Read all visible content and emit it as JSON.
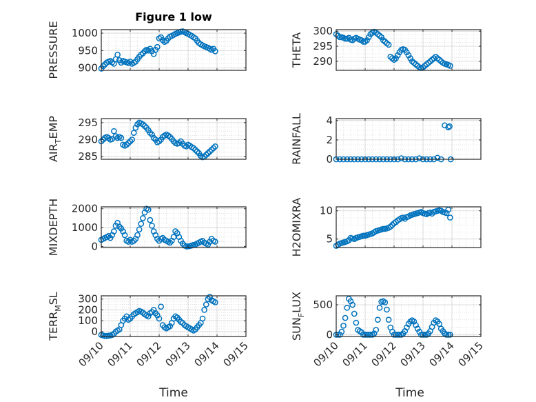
{
  "figure": {
    "title": "Figure 1 low",
    "marker_color": "#0072BD"
  },
  "chart_data": [
    {
      "type": "scatter",
      "id": "pressure",
      "ylabel": "PRESSURE",
      "yticks": [
        900,
        950,
        1000
      ],
      "ylim": [
        893,
        1010
      ],
      "x": [
        "09/10 00:00",
        "09/10 01:30",
        "09/10 03:00",
        "09/10 04:30",
        "09/10 06:00",
        "09/10 07:30",
        "09/10 09:00",
        "09/10 10:30",
        "09/10 12:00",
        "09/10 13:30",
        "09/10 15:00",
        "09/10 16:30",
        "09/10 18:00",
        "09/10 19:30",
        "09/10 21:00",
        "09/10 22:30",
        "09/11 00:00",
        "09/11 01:30",
        "09/11 03:00",
        "09/11 04:30",
        "09/11 06:00",
        "09/11 07:30",
        "09/11 09:00",
        "09/11 10:30",
        "09/11 12:00",
        "09/11 13:30",
        "09/11 15:00",
        "09/11 16:30",
        "09/11 18:00",
        "09/11 19:30",
        "09/11 21:00",
        "09/11 22:30",
        "09/12 00:00",
        "09/12 01:30",
        "09/12 03:00",
        "09/12 04:30",
        "09/12 06:00",
        "09/12 07:30",
        "09/12 09:00",
        "09/12 10:30",
        "09/12 12:00",
        "09/12 13:30",
        "09/12 15:00",
        "09/12 16:30",
        "09/12 18:00",
        "09/12 19:30",
        "09/12 21:00",
        "09/12 22:30",
        "09/13 00:00",
        "09/13 01:30",
        "09/13 03:00",
        "09/13 04:30",
        "09/13 06:00",
        "09/13 07:30",
        "09/13 09:00",
        "09/13 10:30",
        "09/13 12:00",
        "09/13 13:30",
        "09/13 15:00",
        "09/13 16:30",
        "09/13 18:00",
        "09/13 19:30",
        "09/13 21:00",
        "09/13 22:30"
      ],
      "y": [
        898,
        905,
        910,
        915,
        918,
        920,
        916,
        912,
        925,
        938,
        922,
        915,
        920,
        918,
        916,
        914,
        918,
        912,
        915,
        918,
        925,
        932,
        938,
        942,
        948,
        952,
        950,
        955,
        948,
        940,
        952,
        960,
        985,
        988,
        980,
        975,
        978,
        985,
        990,
        992,
        995,
        998,
        1000,
        1002,
        1004,
        1005,
        1003,
        1000,
        998,
        995,
        992,
        988,
        985,
        978,
        972,
        968,
        965,
        962,
        960,
        958,
        955,
        952,
        955,
        948
      ]
    },
    {
      "type": "scatter",
      "id": "theta",
      "ylabel": "THETA",
      "yticks": [
        290,
        295,
        300
      ],
      "ylim": [
        287,
        300.5
      ],
      "x": [
        "09/10 00:00",
        "09/10 01:30",
        "09/10 03:00",
        "09/10 04:30",
        "09/10 06:00",
        "09/10 07:30",
        "09/10 09:00",
        "09/10 10:30",
        "09/10 12:00",
        "09/10 13:30",
        "09/10 15:00",
        "09/10 16:30",
        "09/10 18:00",
        "09/10 19:30",
        "09/10 21:00",
        "09/10 22:30",
        "09/11 00:00",
        "09/11 01:30",
        "09/11 03:00",
        "09/11 04:30",
        "09/11 06:00",
        "09/11 07:30",
        "09/11 09:00",
        "09/11 10:30",
        "09/11 12:00",
        "09/11 13:30",
        "09/11 15:00",
        "09/11 16:30",
        "09/11 18:00",
        "09/11 19:30",
        "09/11 21:00",
        "09/11 22:30",
        "09/12 00:00",
        "09/12 01:30",
        "09/12 03:00",
        "09/12 04:30",
        "09/12 06:00",
        "09/12 07:30",
        "09/12 09:00",
        "09/12 10:30",
        "09/12 12:00",
        "09/12 13:30",
        "09/12 15:00",
        "09/12 16:30",
        "09/12 18:00",
        "09/12 19:30",
        "09/12 21:00",
        "09/12 22:30",
        "09/13 00:00",
        "09/13 01:30",
        "09/13 03:00",
        "09/13 04:30",
        "09/13 06:00",
        "09/13 07:30",
        "09/13 09:00",
        "09/13 10:30",
        "09/13 12:00",
        "09/13 13:30",
        "09/13 15:00",
        "09/13 16:30",
        "09/13 18:00",
        "09/13 19:30",
        "09/13 21:00",
        "09/13 22:30"
      ],
      "y": [
        299,
        298.5,
        298,
        298,
        297.8,
        297.5,
        297.5,
        297.8,
        297.2,
        297,
        297.5,
        297.8,
        297.5,
        297.2,
        297,
        296.5,
        296.5,
        297,
        298,
        299,
        299.5,
        299.8,
        299.5,
        299,
        298.5,
        298,
        297,
        296.5,
        296,
        295.5,
        291.5,
        291,
        290.5,
        291,
        292,
        293,
        293.8,
        294,
        293.8,
        293,
        292,
        291,
        290,
        289.5,
        289,
        288.5,
        288,
        287.8,
        288,
        288.5,
        289,
        289.5,
        290,
        290.5,
        291,
        291.5,
        291,
        290.5,
        290,
        289.5,
        289.2,
        289,
        288.8,
        288.5
      ]
    },
    {
      "type": "scatter",
      "id": "air_temp",
      "ylabel": "AIR",
      "ylabel_sub": "T",
      "ylabel_tail": "EMP",
      "yticks": [
        285,
        290,
        295
      ],
      "ylim": [
        284.2,
        296.2
      ],
      "x": [
        "09/10 00:00",
        "09/10 01:30",
        "09/10 03:00",
        "09/10 04:30",
        "09/10 06:00",
        "09/10 07:30",
        "09/10 09:00",
        "09/10 10:30",
        "09/10 12:00",
        "09/10 13:30",
        "09/10 15:00",
        "09/10 16:30",
        "09/10 18:00",
        "09/10 19:30",
        "09/10 21:00",
        "09/10 22:30",
        "09/11 00:00",
        "09/11 01:30",
        "09/11 03:00",
        "09/11 04:30",
        "09/11 06:00",
        "09/11 07:30",
        "09/11 09:00",
        "09/11 10:30",
        "09/11 12:00",
        "09/11 13:30",
        "09/11 15:00",
        "09/11 16:30",
        "09/11 18:00",
        "09/11 19:30",
        "09/11 21:00",
        "09/11 22:30",
        "09/12 00:00",
        "09/12 01:30",
        "09/12 03:00",
        "09/12 04:30",
        "09/12 06:00",
        "09/12 07:30",
        "09/12 09:00",
        "09/12 10:30",
        "09/12 12:00",
        "09/12 13:30",
        "09/12 15:00",
        "09/12 16:30",
        "09/12 18:00",
        "09/12 19:30",
        "09/12 21:00",
        "09/12 22:30",
        "09/13 00:00",
        "09/13 01:30",
        "09/13 03:00",
        "09/13 04:30",
        "09/13 06:00",
        "09/13 07:30",
        "09/13 09:00",
        "09/13 10:30",
        "09/13 12:00",
        "09/13 13:30",
        "09/13 15:00",
        "09/13 16:30",
        "09/13 18:00",
        "09/13 19:30",
        "09/13 21:00",
        "09/13 22:30"
      ],
      "y": [
        289.5,
        290,
        290.5,
        290.8,
        290.5,
        290,
        290.2,
        292.5,
        291,
        290.5,
        290.8,
        290.5,
        288.5,
        288.2,
        288.5,
        289,
        289.5,
        290,
        292,
        293.5,
        294.5,
        295,
        294.8,
        294.5,
        294,
        293.5,
        292.8,
        292,
        291.5,
        290.5,
        290,
        289.2,
        289.5,
        290,
        290.8,
        291.2,
        291.5,
        291.2,
        290.8,
        290.2,
        289.5,
        289,
        288.8,
        289,
        289.5,
        288.8,
        288.2,
        288,
        288.5,
        288.2,
        287.8,
        287.5,
        287,
        286.5,
        286,
        285.2,
        284.8,
        285,
        285.5,
        286,
        286.5,
        287,
        287.5,
        288
      ]
    },
    {
      "type": "scatter",
      "id": "rainfall",
      "ylabel": "RAINFALL",
      "yticks": [
        0,
        2,
        4
      ],
      "ylim": [
        0,
        4.2
      ],
      "x": [
        "09/10 00:00",
        "09/10 03:00",
        "09/10 06:00",
        "09/10 09:00",
        "09/10 12:00",
        "09/10 15:00",
        "09/10 18:00",
        "09/10 21:00",
        "09/11 00:00",
        "09/11 03:00",
        "09/11 06:00",
        "09/11 09:00",
        "09/11 12:00",
        "09/11 15:00",
        "09/11 18:00",
        "09/11 21:00",
        "09/12 00:00",
        "09/12 03:00",
        "09/12 06:00",
        "09/12 09:00",
        "09/12 12:00",
        "09/12 15:00",
        "09/12 18:00",
        "09/12 21:00",
        "09/13 00:00",
        "09/13 03:00",
        "09/13 06:00",
        "09/13 09:00",
        "09/13 12:00",
        "09/13 15:00",
        "09/13 18:00",
        "09/13 21:00",
        "09/13 22:00",
        "09/13 23:00"
      ],
      "y": [
        0,
        0,
        0,
        0,
        0,
        0,
        0,
        0,
        0,
        0,
        0,
        0,
        0,
        0,
        0,
        0,
        0,
        0,
        0.1,
        0,
        0,
        0,
        0,
        0.1,
        0,
        0,
        0,
        0,
        0.15,
        0,
        3.5,
        3.3,
        3.4,
        0
      ]
    },
    {
      "type": "scatter",
      "id": "mixdepth",
      "ylabel": "MIXDEPTH",
      "yticks": [
        0,
        1000,
        2000
      ],
      "ylim": [
        -60,
        2100
      ],
      "x": [
        "09/10 00:00",
        "09/10 01:30",
        "09/10 03:00",
        "09/10 04:30",
        "09/10 06:00",
        "09/10 07:30",
        "09/10 09:00",
        "09/10 10:30",
        "09/10 12:00",
        "09/10 13:30",
        "09/10 15:00",
        "09/10 16:30",
        "09/10 18:00",
        "09/10 19:30",
        "09/10 21:00",
        "09/10 22:30",
        "09/11 00:00",
        "09/11 01:30",
        "09/11 03:00",
        "09/11 04:30",
        "09/11 06:00",
        "09/11 07:30",
        "09/11 09:00",
        "09/11 10:30",
        "09/11 12:00",
        "09/11 13:30",
        "09/11 15:00",
        "09/11 16:30",
        "09/11 18:00",
        "09/11 19:30",
        "09/11 21:00",
        "09/11 22:30",
        "09/12 00:00",
        "09/12 01:30",
        "09/12 03:00",
        "09/12 04:30",
        "09/12 06:00",
        "09/12 07:30",
        "09/12 09:00",
        "09/12 10:30",
        "09/12 12:00",
        "09/12 13:30",
        "09/12 15:00",
        "09/12 16:30",
        "09/12 18:00",
        "09/12 19:30",
        "09/12 21:00",
        "09/12 22:30",
        "09/13 00:00",
        "09/13 01:30",
        "09/13 03:00",
        "09/13 04:30",
        "09/13 06:00",
        "09/13 07:30",
        "09/13 09:00",
        "09/13 10:30",
        "09/13 12:00",
        "09/13 13:30",
        "09/13 15:00",
        "09/13 16:30",
        "09/13 18:00",
        "09/13 19:30",
        "09/13 21:00",
        "09/13 22:30"
      ],
      "y": [
        350,
        400,
        450,
        500,
        550,
        450,
        600,
        800,
        1100,
        1250,
        1050,
        950,
        800,
        600,
        300,
        250,
        350,
        250,
        300,
        400,
        600,
        900,
        1200,
        1500,
        1800,
        2000,
        1950,
        1400,
        1100,
        800,
        600,
        400,
        300,
        400,
        450,
        350,
        300,
        250,
        200,
        300,
        500,
        800,
        700,
        500,
        300,
        150,
        50,
        0,
        0,
        20,
        50,
        80,
        100,
        150,
        200,
        250,
        300,
        200,
        150,
        100,
        250,
        400,
        300,
        250
      ]
    },
    {
      "type": "scatter",
      "id": "h2omixra",
      "ylabel": "H2OMIXRA",
      "yticks": [
        5,
        10
      ],
      "ylim": [
        3.5,
        10.7
      ],
      "x": [
        "09/10 00:00",
        "09/10 01:30",
        "09/10 03:00",
        "09/10 04:30",
        "09/10 06:00",
        "09/10 07:30",
        "09/10 09:00",
        "09/10 10:30",
        "09/10 12:00",
        "09/10 13:30",
        "09/10 15:00",
        "09/10 16:30",
        "09/10 18:00",
        "09/10 19:30",
        "09/10 21:00",
        "09/10 22:30",
        "09/11 00:00",
        "09/11 01:30",
        "09/11 03:00",
        "09/11 04:30",
        "09/11 06:00",
        "09/11 07:30",
        "09/11 09:00",
        "09/11 10:30",
        "09/11 12:00",
        "09/11 13:30",
        "09/11 15:00",
        "09/11 16:30",
        "09/11 18:00",
        "09/11 19:30",
        "09/11 21:00",
        "09/11 22:30",
        "09/12 00:00",
        "09/12 01:30",
        "09/12 03:00",
        "09/12 04:30",
        "09/12 06:00",
        "09/12 07:30",
        "09/12 09:00",
        "09/12 10:30",
        "09/12 12:00",
        "09/12 13:30",
        "09/12 15:00",
        "09/12 16:30",
        "09/12 18:00",
        "09/12 19:30",
        "09/12 21:00",
        "09/12 22:30",
        "09/13 00:00",
        "09/13 01:30",
        "09/13 03:00",
        "09/13 04:30",
        "09/13 06:00",
        "09/13 07:30",
        "09/13 09:00",
        "09/13 10:30",
        "09/13 12:00",
        "09/13 13:30",
        "09/13 15:00",
        "09/13 16:30",
        "09/13 18:00",
        "09/13 19:30",
        "09/13 21:00",
        "09/13 22:30"
      ],
      "y": [
        3.8,
        4,
        4.2,
        4.3,
        4.4,
        4.5,
        4.6,
        4.8,
        5.2,
        5.1,
        5,
        5.2,
        5.3,
        5.4,
        5.5,
        5.6,
        5.6,
        5.7,
        5.8,
        5.9,
        6,
        6.2,
        6.4,
        6.5,
        6.6,
        6.7,
        6.8,
        6.8,
        6.9,
        7,
        7.2,
        7.5,
        7.8,
        8,
        8.3,
        8.5,
        8.7,
        8.8,
        8.6,
        8.9,
        9,
        9.2,
        9.3,
        9.4,
        9.5,
        9.6,
        9.7,
        9.8,
        9.6,
        9.5,
        9.4,
        9.6,
        9.7,
        9.5,
        9.8,
        9.9,
        10,
        10.1,
        10,
        9.8,
        9.7,
        9.6,
        10.2,
        8.8
      ]
    },
    {
      "type": "scatter",
      "id": "terr_msl",
      "ylabel": "TERR",
      "ylabel_sub": "M",
      "ylabel_tail": "SL",
      "yticks": [
        0,
        100,
        200,
        300
      ],
      "ylim": [
        -45,
        330
      ],
      "x": [
        "09/10 00:00",
        "09/10 01:30",
        "09/10 03:00",
        "09/10 04:30",
        "09/10 06:00",
        "09/10 07:30",
        "09/10 09:00",
        "09/10 10:30",
        "09/10 12:00",
        "09/10 13:30",
        "09/10 15:00",
        "09/10 16:30",
        "09/10 18:00",
        "09/10 19:30",
        "09/10 21:00",
        "09/10 22:30",
        "09/11 00:00",
        "09/11 01:30",
        "09/11 03:00",
        "09/11 04:30",
        "09/11 06:00",
        "09/11 07:30",
        "09/11 09:00",
        "09/11 10:30",
        "09/11 12:00",
        "09/11 13:30",
        "09/11 15:00",
        "09/11 16:30",
        "09/11 18:00",
        "09/11 19:30",
        "09/11 21:00",
        "09/11 22:30",
        "09/12 00:00",
        "09/12 01:30",
        "09/12 03:00",
        "09/12 04:30",
        "09/12 06:00",
        "09/12 07:30",
        "09/12 09:00",
        "09/12 10:30",
        "09/12 12:00",
        "09/12 13:30",
        "09/12 15:00",
        "09/12 16:30",
        "09/12 18:00",
        "09/12 19:30",
        "09/12 21:00",
        "09/12 22:30",
        "09/13 00:00",
        "09/13 01:30",
        "09/13 03:00",
        "09/13 04:30",
        "09/13 06:00",
        "09/13 07:30",
        "09/13 09:00",
        "09/13 10:30",
        "09/13 12:00",
        "09/13 13:30",
        "09/13 15:00",
        "09/13 16:30",
        "09/13 18:00",
        "09/13 19:30",
        "09/13 21:00",
        "09/13 22:30"
      ],
      "y": [
        -30,
        -35,
        -40,
        -40,
        -38,
        -35,
        -30,
        -20,
        0,
        10,
        20,
        60,
        100,
        120,
        140,
        110,
        120,
        140,
        160,
        170,
        180,
        190,
        185,
        175,
        160,
        150,
        140,
        170,
        180,
        200,
        170,
        150,
        120,
        230,
        60,
        40,
        30,
        40,
        50,
        80,
        120,
        140,
        130,
        110,
        90,
        80,
        60,
        50,
        40,
        30,
        20,
        10,
        20,
        40,
        60,
        80,
        120,
        200,
        250,
        300,
        320,
        290,
        280,
        270
      ]
    },
    {
      "type": "scatter",
      "id": "sunflux",
      "ylabel": "SUN",
      "ylabel_sub": "F",
      "ylabel_tail": "LUX",
      "yticks": [
        0,
        500
      ],
      "ylim": [
        -30,
        650
      ],
      "x": [
        "09/10 00:00",
        "09/10 01:30",
        "09/10 03:00",
        "09/10 04:30",
        "09/10 06:00",
        "09/10 07:30",
        "09/10 09:00",
        "09/10 10:30",
        "09/10 12:00",
        "09/10 13:30",
        "09/10 15:00",
        "09/10 16:30",
        "09/10 18:00",
        "09/10 19:30",
        "09/10 21:00",
        "09/10 22:30",
        "09/11 00:00",
        "09/11 01:30",
        "09/11 03:00",
        "09/11 04:30",
        "09/11 06:00",
        "09/11 07:30",
        "09/11 09:00",
        "09/11 10:30",
        "09/11 12:00",
        "09/11 13:30",
        "09/11 15:00",
        "09/11 16:30",
        "09/11 18:00",
        "09/11 19:30",
        "09/11 21:00",
        "09/11 22:30",
        "09/12 00:00",
        "09/12 01:30",
        "09/12 03:00",
        "09/12 04:30",
        "09/12 06:00",
        "09/12 07:30",
        "09/12 09:00",
        "09/12 10:30",
        "09/12 12:00",
        "09/12 13:30",
        "09/12 15:00",
        "09/12 16:30",
        "09/12 18:00",
        "09/12 19:30",
        "09/12 21:00",
        "09/12 22:30",
        "09/13 00:00",
        "09/13 01:30",
        "09/13 03:00",
        "09/13 04:30",
        "09/13 06:00",
        "09/13 07:30",
        "09/13 09:00",
        "09/13 10:30",
        "09/13 12:00",
        "09/13 13:30",
        "09/13 15:00",
        "09/13 16:30",
        "09/13 18:00",
        "09/13 19:30",
        "09/13 21:00",
        "09/13 22:30"
      ],
      "y": [
        0,
        0,
        0,
        50,
        150,
        280,
        450,
        600,
        560,
        500,
        350,
        200,
        80,
        60,
        40,
        0,
        0,
        0,
        0,
        0,
        0,
        20,
        80,
        250,
        450,
        550,
        560,
        540,
        420,
        250,
        120,
        50,
        0,
        0,
        0,
        0,
        0,
        20,
        60,
        120,
        180,
        220,
        240,
        220,
        160,
        100,
        50,
        0,
        0,
        0,
        0,
        20,
        60,
        130,
        200,
        240,
        220,
        180,
        100,
        60,
        20,
        0,
        0,
        0
      ]
    }
  ],
  "x_axis": {
    "ticks": [
      "09/10",
      "09/11",
      "09/12",
      "09/13",
      "09/14",
      "09/15"
    ],
    "range": [
      "09/10",
      "09/15"
    ],
    "label": "Time"
  }
}
